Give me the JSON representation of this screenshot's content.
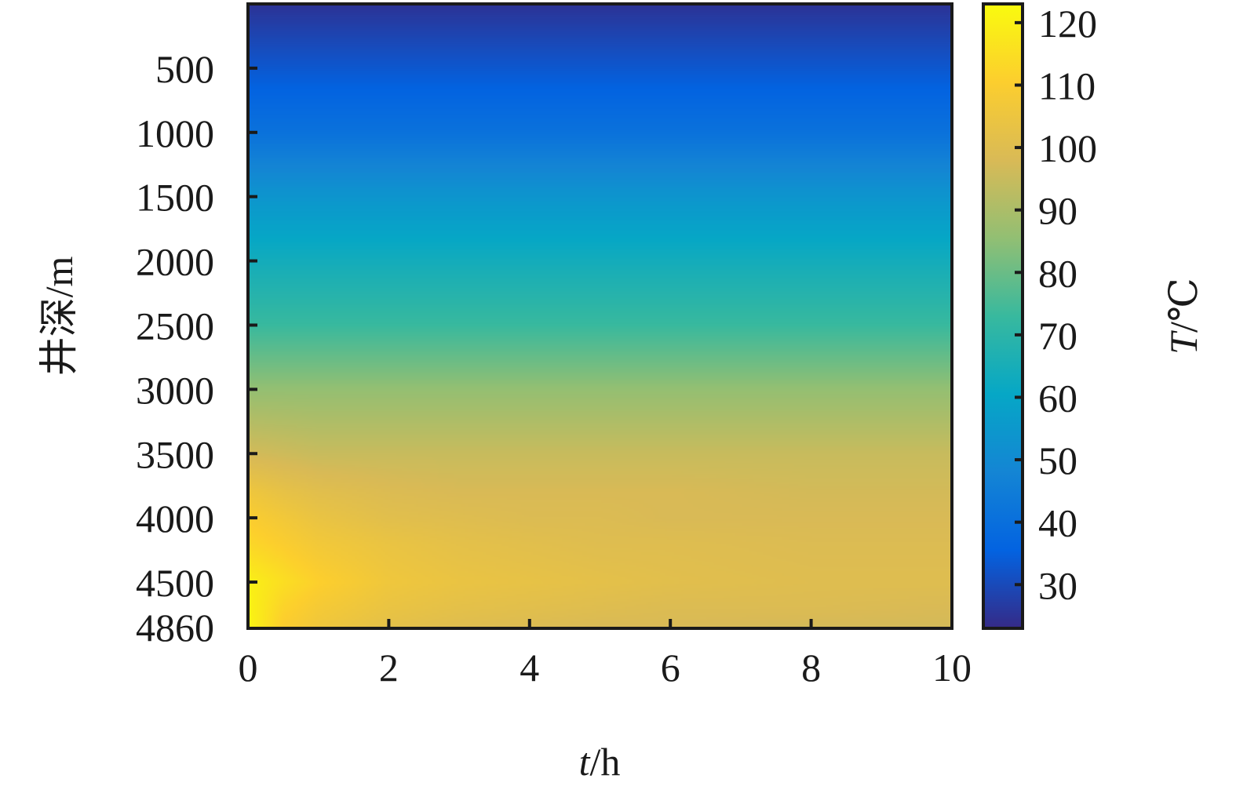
{
  "chart_data": {
    "type": "heatmap",
    "title": "",
    "xlabel": {
      "var": "t",
      "unit": "/h"
    },
    "ylabel": "井深/m",
    "colorbar_label": {
      "var": "T",
      "unit": "/℃"
    },
    "xlim": [
      0,
      10
    ],
    "ylim": [
      4860,
      0
    ],
    "x_ticks": [
      0,
      2,
      4,
      6,
      8,
      10
    ],
    "y_ticks": [
      500,
      1000,
      1500,
      2000,
      2500,
      3000,
      3500,
      4000,
      4500,
      4860
    ],
    "colorbar_range": [
      23,
      123
    ],
    "colorbar_ticks": [
      30,
      40,
      50,
      60,
      70,
      80,
      90,
      100,
      110,
      120
    ],
    "colormap": "parula",
    "colormap_stops": [
      "#352a87",
      "#0363e1",
      "#1485d4",
      "#06a7c6",
      "#38b99e",
      "#92bf73",
      "#d9ba56",
      "#fcce2e",
      "#f9fb0e"
    ],
    "grid": false,
    "temperature_field": {
      "description_axes": [
        "t (h)",
        "depth (m)"
      ],
      "t_samples": [
        0,
        0.5,
        1,
        2,
        3,
        4,
        5,
        6,
        8,
        10
      ],
      "depth_samples": [
        0,
        500,
        1000,
        1500,
        2000,
        2500,
        3000,
        3500,
        3800,
        4000,
        4200,
        4500,
        4700,
        4860
      ],
      "values": [
        [
          25,
          25,
          25,
          25,
          25,
          25,
          25,
          25,
          25,
          25
        ],
        [
          33,
          33,
          33,
          33,
          33,
          33,
          33,
          33,
          33,
          33
        ],
        [
          41,
          41,
          41,
          41,
          41,
          41,
          41,
          41,
          41,
          41
        ],
        [
          54,
          54,
          54,
          54,
          54,
          54,
          54,
          54,
          54,
          54
        ],
        [
          64,
          64,
          64,
          64,
          64,
          64,
          64,
          64,
          64,
          64
        ],
        [
          73,
          73,
          73,
          73,
          73,
          73,
          73,
          73,
          73,
          73
        ],
        [
          86,
          86,
          86,
          86,
          86,
          86,
          86,
          86,
          86,
          86
        ],
        [
          97,
          96,
          95,
          95,
          95,
          95,
          95,
          95,
          95,
          95
        ],
        [
          106,
          103,
          101,
          99,
          98,
          98,
          98,
          98,
          97,
          97
        ],
        [
          110,
          107,
          104,
          101,
          100,
          99,
          99,
          98,
          98,
          98
        ],
        [
          113,
          110,
          107,
          104,
          102,
          101,
          100,
          100,
          99,
          99
        ],
        [
          120,
          115,
          111,
          106,
          104,
          103,
          102,
          101,
          100,
          100
        ],
        [
          121,
          112,
          108,
          104,
          102,
          101,
          100,
          99,
          99,
          98
        ],
        [
          122,
          110,
          106,
          102,
          100,
          99,
          98,
          98,
          97,
          97
        ]
      ]
    }
  }
}
